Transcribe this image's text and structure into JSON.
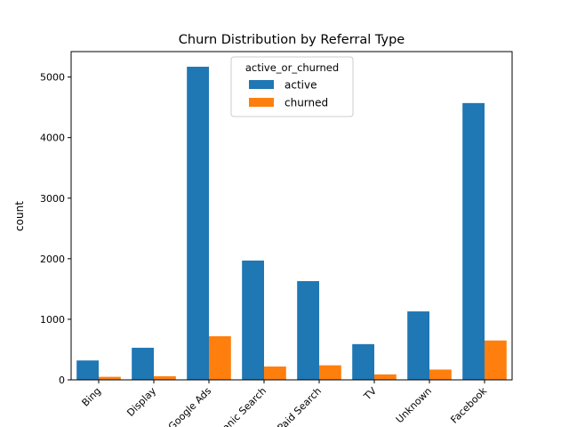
{
  "chart_data": {
    "type": "bar",
    "title": "Churn Distribution by Referral Type",
    "xlabel": "",
    "ylabel": "count",
    "categories": [
      "Bing",
      "Display",
      "Google Ads",
      "Organic Search",
      "Paid Search",
      "TV",
      "Unknown",
      "Facebook"
    ],
    "series": [
      {
        "name": "active",
        "color": "#1f77b4",
        "values": [
          320,
          530,
          5170,
          1970,
          1630,
          590,
          1130,
          4570
        ]
      },
      {
        "name": "churned",
        "color": "#ff7f0e",
        "values": [
          50,
          60,
          720,
          220,
          240,
          90,
          170,
          650
        ]
      }
    ],
    "ylim": [
      0,
      5420
    ],
    "yticks": [
      0,
      1000,
      2000,
      3000,
      4000,
      5000
    ],
    "legend": {
      "title": "active_or_churned",
      "placement": "upper-center"
    },
    "grid": false
  }
}
